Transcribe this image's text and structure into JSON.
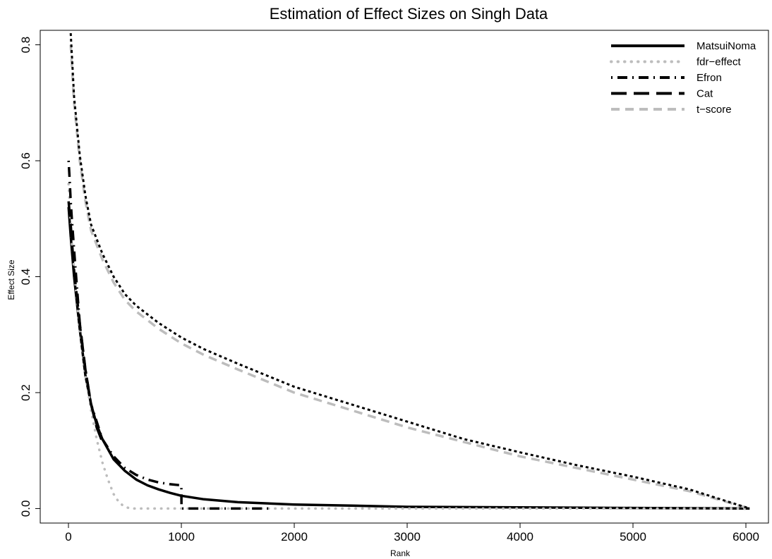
{
  "chart_data": {
    "type": "line",
    "title": "Estimation of Effect Sizes on Singh Data",
    "xlabel": "Rank",
    "ylabel": "Effect Size",
    "xlim": [
      -250,
      6200
    ],
    "ylim": [
      -0.025,
      0.825
    ],
    "xticks": [
      "0",
      "1000",
      "2000",
      "3000",
      "4000",
      "5000",
      "6000"
    ],
    "yticks": [
      "0.0",
      "0.2",
      "0.4",
      "0.6",
      "0.8"
    ],
    "grid": false,
    "legend_position": "top-right",
    "series": [
      {
        "name": "MatsuiNoma",
        "style": "solid",
        "color": "#000000",
        "x": [
          1,
          20,
          50,
          100,
          150,
          200,
          250,
          300,
          400,
          500,
          600,
          700,
          800,
          900,
          1000,
          1200,
          1500,
          2000,
          2500,
          3000,
          4000,
          5000,
          6033
        ],
        "y": [
          0.52,
          0.47,
          0.4,
          0.31,
          0.23,
          0.18,
          0.145,
          0.12,
          0.085,
          0.065,
          0.05,
          0.04,
          0.033,
          0.027,
          0.022,
          0.016,
          0.011,
          0.007,
          0.005,
          0.003,
          0.002,
          0.001,
          0.0
        ]
      },
      {
        "name": "fdr−effect",
        "style": "dotted",
        "color": "#bdbdbd",
        "x": [
          1,
          30,
          60,
          100,
          150,
          200,
          250,
          300,
          350,
          400,
          450,
          500,
          550,
          600,
          1000,
          2000,
          3000,
          4000,
          5000,
          6033
        ],
        "y": [
          0.56,
          0.46,
          0.39,
          0.31,
          0.23,
          0.17,
          0.12,
          0.08,
          0.05,
          0.025,
          0.01,
          0.003,
          0.0,
          0.0,
          0.0,
          0.0,
          0.0,
          0.0,
          0.0,
          0.0
        ]
      },
      {
        "name": "Efron",
        "style": "dotdash",
        "color": "#000000",
        "x": [
          1,
          10,
          20,
          30,
          60,
          100,
          150,
          200,
          250,
          300,
          400,
          500,
          600,
          700,
          800,
          900,
          1000,
          1001,
          1200,
          1500,
          1800
        ],
        "y": [
          0.6,
          0.57,
          0.53,
          0.5,
          0.42,
          0.32,
          0.24,
          0.18,
          0.15,
          0.12,
          0.09,
          0.07,
          0.058,
          0.05,
          0.045,
          0.042,
          0.04,
          0.0,
          0.0,
          0.0,
          0.0
        ]
      },
      {
        "name": "Cat",
        "style": "longdash",
        "color": "#000000",
        "x": [
          1,
          20,
          50,
          100,
          150,
          200,
          250,
          300
        ],
        "y": [
          0.53,
          0.49,
          0.41,
          0.32,
          0.24,
          0.18,
          0.14,
          0.115
        ]
      },
      {
        "name": "t−score",
        "style": "dashed",
        "color": "#bdbdbd",
        "x": [
          20,
          50,
          100,
          150,
          200,
          300,
          400,
          500,
          600,
          800,
          1000,
          1200,
          1500,
          2000,
          2500,
          3000,
          3500,
          4000,
          4500,
          5000,
          5500,
          6033
        ],
        "y": [
          0.8,
          0.7,
          0.6,
          0.53,
          0.48,
          0.43,
          0.39,
          0.36,
          0.34,
          0.31,
          0.285,
          0.265,
          0.24,
          0.2,
          0.17,
          0.14,
          0.115,
          0.09,
          0.07,
          0.05,
          0.03,
          0.0
        ]
      },
      {
        "name": "dotted-black",
        "style": "shortdash",
        "color": "#000000",
        "x": [
          20,
          50,
          100,
          150,
          200,
          300,
          400,
          500,
          600,
          800,
          1000,
          1200,
          1500,
          2000,
          2500,
          3000,
          3500,
          4000,
          4500,
          5000,
          5500,
          6033
        ],
        "y": [
          0.82,
          0.71,
          0.61,
          0.54,
          0.49,
          0.44,
          0.4,
          0.37,
          0.35,
          0.32,
          0.295,
          0.275,
          0.25,
          0.21,
          0.18,
          0.15,
          0.12,
          0.097,
          0.075,
          0.055,
          0.033,
          0.0
        ],
        "in_legend": false
      }
    ]
  }
}
